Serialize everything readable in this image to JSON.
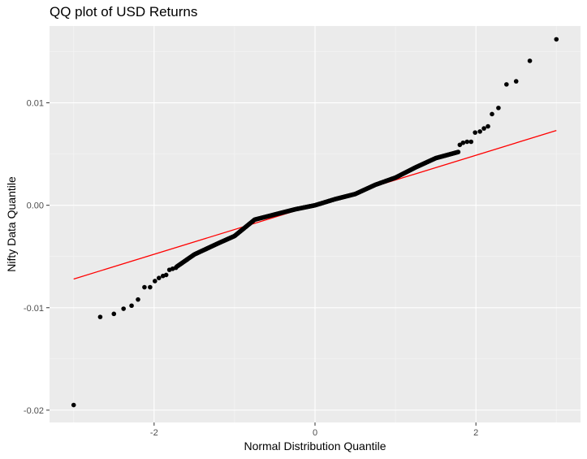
{
  "chart_data": {
    "type": "scatter",
    "title": "QQ plot of USD Returns",
    "xlabel": "Normal Distribution Quantile",
    "ylabel": "Nifty Data Quantile",
    "xlim": [
      -3.3,
      3.3
    ],
    "ylim": [
      -0.0212,
      0.0175
    ],
    "x_ticks": [
      -2,
      0,
      2
    ],
    "x_tick_labels": [
      "-2",
      "0",
      "2"
    ],
    "y_ticks": [
      -0.02,
      -0.01,
      0.0,
      0.01
    ],
    "y_tick_labels": [
      "-0.02",
      "-0.01",
      "0.00",
      "0.01"
    ],
    "grid": true,
    "colors": {
      "panel_background": "#ebebeb",
      "grid_major": "#ffffff",
      "grid_minor": "#f5f5f5",
      "points": "#000000",
      "reference_line": "#ff0000"
    },
    "reference_line": {
      "x": [
        -3.0,
        3.0
      ],
      "y": [
        -0.0072,
        0.0073
      ]
    },
    "series": [
      {
        "points": [
          [
            -3.0,
            -0.0195
          ],
          [
            -2.67,
            -0.0109
          ],
          [
            -2.5,
            -0.0106
          ],
          [
            -2.38,
            -0.0101
          ],
          [
            -2.28,
            -0.0098
          ],
          [
            -2.2,
            -0.0092
          ],
          [
            -2.12,
            -0.008
          ],
          [
            -2.05,
            -0.008
          ],
          [
            -1.99,
            -0.0074
          ],
          [
            -1.94,
            -0.0071
          ],
          [
            -1.89,
            -0.0069
          ],
          [
            -1.85,
            -0.0068
          ],
          [
            -1.81,
            -0.0063
          ],
          [
            -1.77,
            -0.0062
          ],
          [
            -1.73,
            -0.0061
          ]
        ],
        "body": {
          "x_from": -1.72,
          "x_to": 1.78,
          "count": 470
        },
        "tail_points": [
          [
            1.8,
            0.0059
          ],
          [
            1.84,
            0.0061
          ],
          [
            1.89,
            0.0062
          ],
          [
            1.94,
            0.0062
          ],
          [
            1.99,
            0.0071
          ],
          [
            2.05,
            0.0072
          ],
          [
            2.1,
            0.0075
          ],
          [
            2.15,
            0.0077
          ],
          [
            2.2,
            0.0089
          ],
          [
            2.28,
            0.0095
          ],
          [
            2.38,
            0.0118
          ],
          [
            2.5,
            0.0121
          ],
          [
            2.67,
            0.0141
          ],
          [
            3.0,
            0.0162
          ]
        ]
      }
    ]
  }
}
